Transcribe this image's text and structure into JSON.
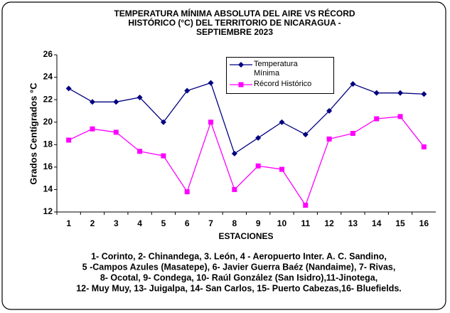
{
  "chart_data": {
    "type": "line",
    "title": [
      "TEMPERATURA  MÍNIMA ABSOLUTA DEL AIRE  VS RÉCORD",
      "HISTÓRICO (°C) DEL TERRITORIO DE NICARAGUA -",
      "SEPTIEMBRE  2023"
    ],
    "x_label": "ESTACIONES",
    "y_label": "Grados Centígrados °C",
    "categories": [
      "1",
      "2",
      "3",
      "4",
      "5",
      "6",
      "7",
      "8",
      "9",
      "10",
      "11",
      "12",
      "13",
      "14",
      "15",
      "16"
    ],
    "series": [
      {
        "name": "Temperatura Mínima",
        "color": "#000080",
        "marker": "diamond",
        "values": [
          23.0,
          21.8,
          21.8,
          22.2,
          20.0,
          22.8,
          23.5,
          17.2,
          18.6,
          20.0,
          18.9,
          21.0,
          23.4,
          22.6,
          22.6,
          22.5
        ]
      },
      {
        "name": "Récord Histórico",
        "color": "#ff00ff",
        "marker": "square",
        "values": [
          18.4,
          19.4,
          19.1,
          17.4,
          17.0,
          13.8,
          20.0,
          14.0,
          16.1,
          15.8,
          12.6,
          18.5,
          19.0,
          20.3,
          20.5,
          17.8
        ]
      }
    ],
    "ylim": [
      12,
      26
    ],
    "yticks": [
      12,
      14,
      16,
      18,
      20,
      22,
      24,
      26
    ],
    "grid": false,
    "footnote": [
      "1- Corinto,  2- Chinandega, 3. León, 4 - Aeropuerto Inter. A. C. Sandino,",
      "5 -Campos Azules (Masatepe), 6- Javier Guerra Baéz (Nandaime), 7- Rivas,",
      "8- Ocotal, 9- Condega, 10- Raúl González (San Isidro),11-Jinotega,",
      "12- Muy Muy, 13- Juigalpa, 14- San Carlos, 15- Puerto Cabezas,16- Bluefields."
    ]
  }
}
